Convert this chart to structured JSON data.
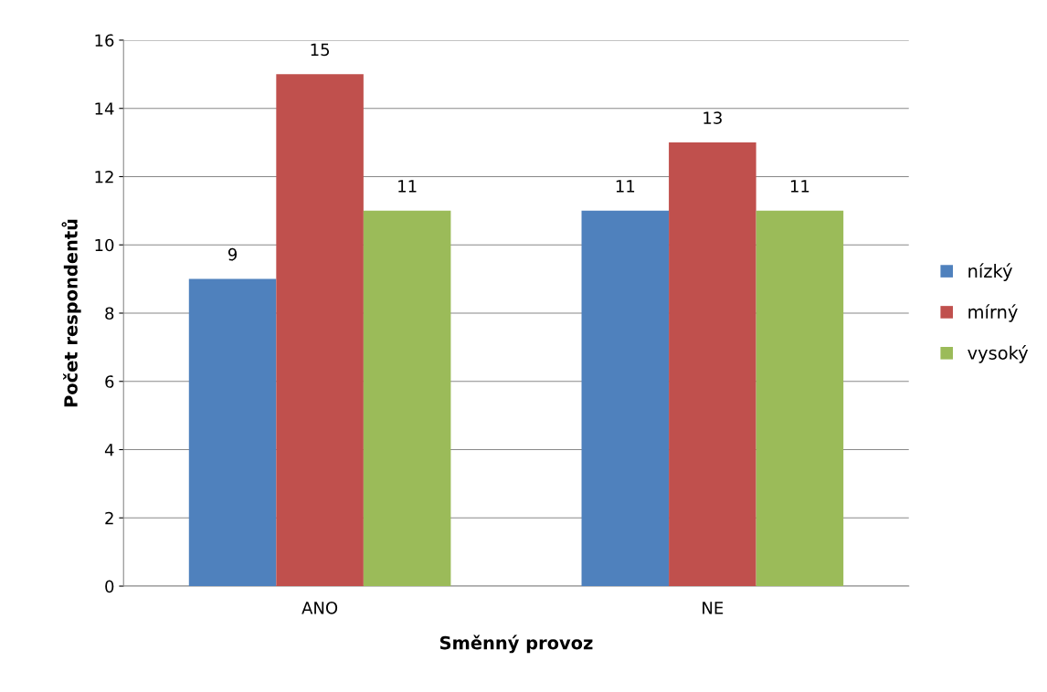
{
  "chart_data": {
    "type": "bar",
    "xlabel": "Směnný provoz",
    "ylabel": "Počet respondentů",
    "categories": [
      "ANO",
      "NE"
    ],
    "series": [
      {
        "name": "nízký",
        "color": "#4f81bd",
        "values": [
          9,
          11
        ]
      },
      {
        "name": "mírný",
        "color": "#c0504d",
        "values": [
          15,
          13
        ]
      },
      {
        "name": "vysoký",
        "color": "#9bbb59",
        "values": [
          11,
          11
        ]
      }
    ],
    "ylim": [
      0,
      16
    ],
    "yticks": [
      0,
      2,
      4,
      6,
      8,
      10,
      12,
      14,
      16
    ],
    "grid": "y",
    "legend": "right",
    "data_labels": true
  }
}
